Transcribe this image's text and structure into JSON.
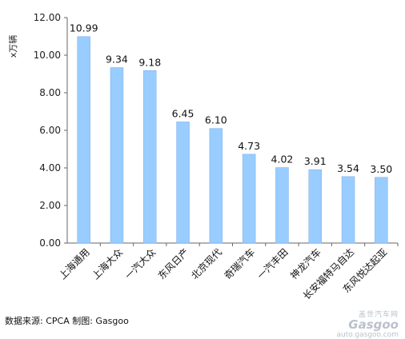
{
  "chart_data": {
    "type": "bar",
    "title": "",
    "xlabel": "",
    "ylabel": "x万辆",
    "ylim": [
      0,
      12
    ],
    "yticks": [
      "0.00",
      "2.00",
      "4.00",
      "6.00",
      "8.00",
      "10.00",
      "12.00"
    ],
    "grid": false,
    "categories": [
      "上海通用",
      "上海大众",
      "一汽大众",
      "东风日产",
      "北京现代",
      "奇瑞汽车",
      "一汽丰田",
      "神龙汽车",
      "长安福特马自达",
      "东风悦达起亚"
    ],
    "values": [
      10.99,
      9.34,
      9.18,
      6.45,
      6.1,
      4.73,
      4.02,
      3.91,
      3.54,
      3.5
    ],
    "data_labels": [
      "10.99",
      "9.34",
      "9.18",
      "6.45",
      "6.10",
      "4.73",
      "4.02",
      "3.91",
      "3.54",
      "3.50"
    ],
    "bar_color": "#99ccff",
    "bar_edge_color": "#7fb0e6"
  },
  "footer": {
    "source": "数据来源: CPCA  制图: Gasgoo"
  },
  "watermark": {
    "cn": "盖世汽车网",
    "logo": "Gasgoo",
    "url": "auto.gasgoo.com"
  }
}
